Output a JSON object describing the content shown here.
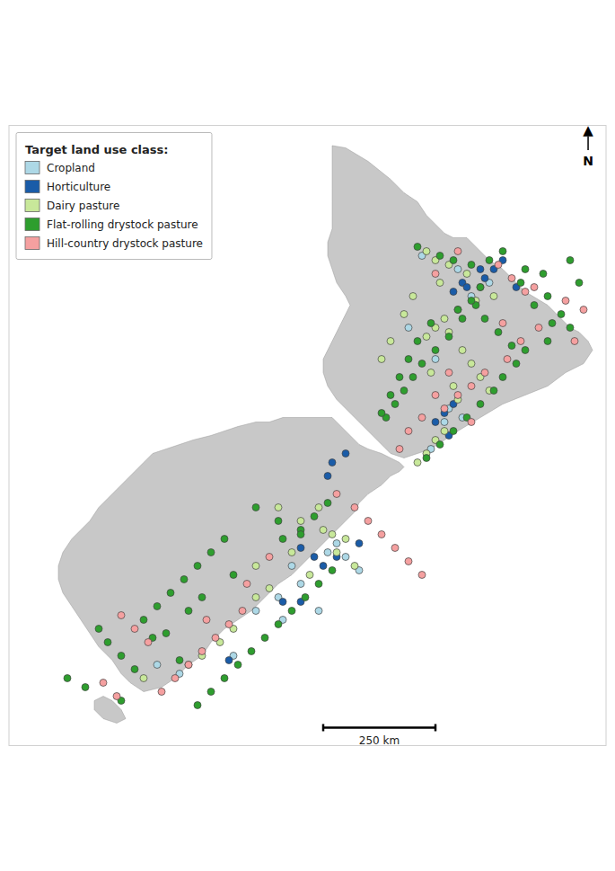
{
  "chart_data": {
    "type": "scatter",
    "title": "Target land use class:",
    "xlim": [
      165.5,
      178.8
    ],
    "ylim": [
      -47.8,
      -34.0
    ],
    "tick_labels": false,
    "grid": false,
    "legend": "upper left",
    "marker": "circle",
    "series": [
      {
        "name": "Cropland",
        "color": "#add8e6",
        "x": [
          174.7,
          175.5,
          175.8,
          176.2,
          175.3,
          175.6,
          174.9,
          172.6,
          171.8,
          172.0,
          171.5,
          170.5,
          169.3,
          168.8,
          172.8,
          173.3,
          171.0,
          174.4,
          175.0,
          175.2,
          172.4,
          173.0,
          171.6
        ],
        "values": [
          -36.9,
          -37.2,
          -37.8,
          -37.5,
          -40.3,
          -40.5,
          -41.2,
          -43.5,
          -43.8,
          -44.2,
          -44.5,
          -45.8,
          -46.2,
          -46.0,
          -43.3,
          -43.9,
          -44.8,
          -38.5,
          -39.2,
          -40.6,
          -44.8,
          -43.6,
          -45.0
        ]
      },
      {
        "name": "Horticulture",
        "color": "#1a5ca8",
        "x": [
          175.4,
          175.6,
          175.7,
          176.1,
          176.3,
          176.5,
          175.2,
          175.4,
          175.0,
          173.0,
          172.7,
          172.0,
          172.3,
          172.5,
          172.8,
          171.6,
          170.4,
          176.0,
          176.8,
          175.3,
          172.6,
          173.3,
          172.0
        ],
        "values": [
          -37.7,
          -37.5,
          -37.6,
          -37.4,
          -37.2,
          -37.0,
          -40.4,
          -40.2,
          -40.6,
          -41.3,
          -41.5,
          -43.4,
          -43.6,
          -43.8,
          -43.6,
          -44.6,
          -45.9,
          -37.2,
          -37.6,
          -40.9,
          -41.8,
          -43.3,
          -44.6
        ]
      },
      {
        "name": "Dairy pasture",
        "color": "#c8e89a",
        "x": [
          174.8,
          175.0,
          175.3,
          175.7,
          176.0,
          175.9,
          175.5,
          175.2,
          175.0,
          174.8,
          175.6,
          175.8,
          176.0,
          176.2,
          175.5,
          175.2,
          175.0,
          174.8,
          174.6,
          171.5,
          172.0,
          172.5,
          173.0,
          171.8,
          172.2,
          171.3,
          170.2,
          169.5,
          168.5,
          171.0,
          172.7,
          175.3,
          174.9,
          176.3,
          175.1,
          174.5,
          174.3,
          174.0,
          173.8,
          175.4,
          172.8,
          173.2,
          171.0,
          170.5,
          169.8,
          172.4
        ],
        "values": [
          -36.8,
          -37.0,
          -37.1,
          -37.3,
          -37.6,
          -37.9,
          -38.1,
          -38.3,
          -38.5,
          -38.7,
          -39.0,
          -39.3,
          -39.6,
          -39.9,
          -40.1,
          -40.8,
          -41.0,
          -41.3,
          -41.5,
          -42.5,
          -42.8,
          -43.0,
          -43.2,
          -43.5,
          -44.0,
          -44.3,
          -45.5,
          -46.0,
          -46.3,
          -43.8,
          -43.1,
          -38.6,
          -39.5,
          -37.8,
          -37.5,
          -37.8,
          -38.2,
          -38.8,
          -39.2,
          -39.8,
          -43.5,
          -43.8,
          -44.5,
          -45.2,
          -45.8,
          -42.5
        ]
      },
      {
        "name": "Flat-rolling drystock pasture",
        "color": "#2e9e2e",
        "x": [
          174.6,
          175.1,
          175.4,
          175.8,
          176.2,
          176.5,
          177.0,
          177.5,
          177.8,
          178.0,
          177.5,
          177.0,
          176.8,
          176.5,
          176.3,
          176.0,
          175.7,
          175.4,
          175.1,
          174.8,
          175.6,
          175.3,
          175.0,
          174.7,
          174.5,
          174.3,
          174.1,
          173.9,
          175.9,
          176.1,
          176.4,
          176.7,
          177.2,
          177.6,
          178.2,
          176.9,
          177.4,
          178.0,
          176.0,
          175.8,
          175.5,
          174.9,
          174.6,
          174.4,
          174.2,
          174.0,
          173.8,
          172.7,
          172.4,
          172.1,
          171.8,
          171.5,
          171.2,
          170.9,
          170.6,
          170.3,
          170.0,
          169.7,
          168.3,
          168.0,
          167.7,
          167.5,
          168.5,
          168.8,
          169.1,
          169.4,
          169.7,
          170.0,
          170.3,
          171.6,
          172.0,
          172.3,
          172.6,
          170.5,
          169.8,
          169.0,
          167.2,
          166.8,
          168.0,
          171.0,
          171.5,
          172.0,
          169.3,
          168.7,
          169.5
        ],
        "values": [
          -36.7,
          -36.9,
          -37.0,
          -37.1,
          -37.0,
          -36.8,
          -37.2,
          -37.8,
          -38.2,
          -38.5,
          -38.8,
          -39.0,
          -39.3,
          -39.6,
          -39.9,
          -40.2,
          -40.5,
          -40.8,
          -41.1,
          -41.4,
          -38.3,
          -38.7,
          -39.0,
          -39.3,
          -39.6,
          -39.9,
          -40.2,
          -40.5,
          -38.0,
          -38.3,
          -38.6,
          -38.9,
          -38.0,
          -38.4,
          -37.5,
          -37.5,
          -37.3,
          -37.0,
          -37.6,
          -37.9,
          -38.1,
          -38.4,
          -38.8,
          -39.2,
          -39.6,
          -40.0,
          -40.4,
          -43.9,
          -44.2,
          -44.5,
          -44.8,
          -45.1,
          -45.4,
          -45.7,
          -46.0,
          -46.3,
          -46.6,
          -46.9,
          -46.1,
          -45.8,
          -45.5,
          -45.2,
          -45.0,
          -44.7,
          -44.4,
          -44.1,
          -43.8,
          -43.5,
          -43.2,
          -43.2,
          -43.0,
          -42.7,
          -42.4,
          -44.0,
          -44.5,
          -45.3,
          -46.5,
          -46.3,
          -46.8,
          -42.5,
          -42.8,
          -43.1,
          -45.9,
          -45.4,
          -44.8
        ]
      },
      {
        "name": "Hill-country drystock pasture",
        "color": "#f5a0a0",
        "x": [
          175.0,
          175.5,
          176.4,
          177.2,
          177.9,
          178.3,
          177.3,
          176.9,
          176.6,
          176.1,
          175.8,
          175.5,
          175.2,
          175.8,
          176.5,
          177.0,
          176.7,
          178.1,
          175.3,
          175.0,
          174.7,
          174.4,
          174.2,
          172.8,
          173.2,
          173.5,
          173.8,
          174.1,
          174.4,
          174.7,
          170.7,
          170.4,
          170.1,
          169.8,
          169.5,
          169.2,
          168.9,
          168.6,
          168.3,
          168.0,
          167.9,
          167.6,
          171.3,
          170.8,
          169.9
        ],
        "values": [
          -37.3,
          -36.8,
          -37.1,
          -37.6,
          -37.9,
          -38.1,
          -38.5,
          -38.8,
          -39.2,
          -39.5,
          -39.8,
          -40.0,
          -40.3,
          -40.6,
          -38.4,
          -37.7,
          -37.4,
          -38.8,
          -39.5,
          -40.0,
          -40.5,
          -40.8,
          -41.2,
          -42.2,
          -42.5,
          -42.8,
          -43.1,
          -43.4,
          -43.7,
          -44.0,
          -44.8,
          -45.1,
          -45.4,
          -45.7,
          -46.0,
          -46.3,
          -46.6,
          -45.5,
          -45.2,
          -44.9,
          -46.7,
          -46.4,
          -43.6,
          -44.2,
          -45.0
        ]
      }
    ],
    "outlines": [
      {
        "color": "#c8c8c8",
        "points": [
          [
            172.7,
            -34.45
          ],
          [
            173.0,
            -34.5
          ],
          [
            173.5,
            -34.8
          ],
          [
            174.0,
            -35.2
          ],
          [
            174.3,
            -35.5
          ],
          [
            174.6,
            -35.7
          ],
          [
            174.8,
            -36.0
          ],
          [
            175.0,
            -36.2
          ],
          [
            175.2,
            -36.4
          ],
          [
            175.4,
            -36.5
          ],
          [
            175.7,
            -36.5
          ],
          [
            176.0,
            -36.8
          ],
          [
            176.2,
            -37.0
          ],
          [
            176.5,
            -37.2
          ],
          [
            176.8,
            -37.5
          ],
          [
            177.0,
            -37.7
          ],
          [
            177.5,
            -38.0
          ],
          [
            177.8,
            -38.3
          ],
          [
            178.0,
            -38.5
          ],
          [
            178.2,
            -38.6
          ],
          [
            178.4,
            -38.8
          ],
          [
            178.5,
            -39.0
          ],
          [
            178.3,
            -39.3
          ],
          [
            177.9,
            -39.5
          ],
          [
            177.5,
            -39.8
          ],
          [
            177.0,
            -40.0
          ],
          [
            176.5,
            -40.2
          ],
          [
            176.0,
            -40.5
          ],
          [
            175.5,
            -40.8
          ],
          [
            175.2,
            -41.0
          ],
          [
            174.9,
            -41.2
          ],
          [
            174.6,
            -41.3
          ],
          [
            174.3,
            -41.4
          ],
          [
            174.0,
            -41.3
          ],
          [
            173.8,
            -41.1
          ],
          [
            173.6,
            -40.9
          ],
          [
            173.4,
            -40.7
          ],
          [
            173.2,
            -40.5
          ],
          [
            173.0,
            -40.3
          ],
          [
            172.8,
            -40.1
          ],
          [
            172.6,
            -39.8
          ],
          [
            172.5,
            -39.5
          ],
          [
            172.5,
            -39.2
          ],
          [
            172.6,
            -39.0
          ],
          [
            172.7,
            -38.8
          ],
          [
            172.8,
            -38.6
          ],
          [
            172.9,
            -38.4
          ],
          [
            173.0,
            -38.2
          ],
          [
            173.1,
            -38.0
          ],
          [
            173.0,
            -37.8
          ],
          [
            172.8,
            -37.5
          ],
          [
            172.7,
            -37.2
          ],
          [
            172.6,
            -36.9
          ],
          [
            172.6,
            -36.6
          ],
          [
            172.7,
            -36.3
          ],
          [
            172.7,
            -36.0
          ],
          [
            172.7,
            -35.7
          ],
          [
            172.7,
            -35.4
          ],
          [
            172.7,
            -35.1
          ],
          [
            172.7,
            -34.7
          ],
          [
            172.7,
            -34.45
          ]
        ]
      },
      {
        "color": "#c8c8c8",
        "points": [
          [
            172.7,
            -40.5
          ],
          [
            172.9,
            -40.7
          ],
          [
            173.1,
            -40.9
          ],
          [
            173.3,
            -41.1
          ],
          [
            173.5,
            -41.2
          ],
          [
            173.8,
            -41.3
          ],
          [
            174.0,
            -41.4
          ],
          [
            174.2,
            -41.5
          ],
          [
            174.3,
            -41.6
          ],
          [
            174.2,
            -41.7
          ],
          [
            174.0,
            -41.8
          ],
          [
            173.8,
            -42.0
          ],
          [
            173.5,
            -42.2
          ],
          [
            173.3,
            -42.4
          ],
          [
            173.2,
            -42.6
          ],
          [
            173.0,
            -42.8
          ],
          [
            172.8,
            -43.0
          ],
          [
            172.6,
            -43.2
          ],
          [
            172.4,
            -43.4
          ],
          [
            172.2,
            -43.6
          ],
          [
            172.0,
            -43.8
          ],
          [
            171.8,
            -44.0
          ],
          [
            171.5,
            -44.2
          ],
          [
            171.2,
            -44.5
          ],
          [
            170.9,
            -44.8
          ],
          [
            170.6,
            -45.0
          ],
          [
            170.3,
            -45.2
          ],
          [
            170.0,
            -45.5
          ],
          [
            169.8,
            -45.8
          ],
          [
            169.5,
            -46.0
          ],
          [
            169.2,
            -46.3
          ],
          [
            168.9,
            -46.5
          ],
          [
            168.5,
            -46.6
          ],
          [
            168.2,
            -46.4
          ],
          [
            168.0,
            -46.2
          ],
          [
            167.8,
            -45.9
          ],
          [
            167.5,
            -45.6
          ],
          [
            167.3,
            -45.3
          ],
          [
            167.1,
            -45.0
          ],
          [
            166.9,
            -44.7
          ],
          [
            166.7,
            -44.4
          ],
          [
            166.6,
            -44.1
          ],
          [
            166.6,
            -43.8
          ],
          [
            166.7,
            -43.5
          ],
          [
            166.9,
            -43.2
          ],
          [
            167.1,
            -43.0
          ],
          [
            167.3,
            -42.8
          ],
          [
            167.5,
            -42.5
          ],
          [
            167.7,
            -42.3
          ],
          [
            167.9,
            -42.1
          ],
          [
            168.1,
            -41.9
          ],
          [
            168.3,
            -41.7
          ],
          [
            168.5,
            -41.5
          ],
          [
            168.7,
            -41.3
          ],
          [
            169.0,
            -41.2
          ],
          [
            169.3,
            -41.1
          ],
          [
            169.6,
            -41.0
          ],
          [
            170.0,
            -40.9
          ],
          [
            170.3,
            -40.8
          ],
          [
            170.6,
            -40.7
          ],
          [
            171.0,
            -40.6
          ],
          [
            171.3,
            -40.6
          ],
          [
            171.6,
            -40.5
          ],
          [
            171.9,
            -40.5
          ],
          [
            172.2,
            -40.5
          ],
          [
            172.5,
            -40.5
          ],
          [
            172.7,
            -40.5
          ]
        ]
      },
      {
        "color": "#c8c8c8",
        "points": [
          [
            167.4,
            -46.8
          ],
          [
            167.6,
            -46.7
          ],
          [
            167.8,
            -46.8
          ],
          [
            168.0,
            -47.0
          ],
          [
            168.1,
            -47.2
          ],
          [
            167.9,
            -47.3
          ],
          [
            167.6,
            -47.2
          ],
          [
            167.4,
            -47.0
          ],
          [
            167.4,
            -46.8
          ]
        ]
      }
    ],
    "annotations": [
      {
        "text": "▲"
      },
      {
        "text": "N"
      },
      {
        "text": "250 km",
        "x": [
          172.5,
          175.0
        ],
        "y": -47.4
      }
    ]
  }
}
